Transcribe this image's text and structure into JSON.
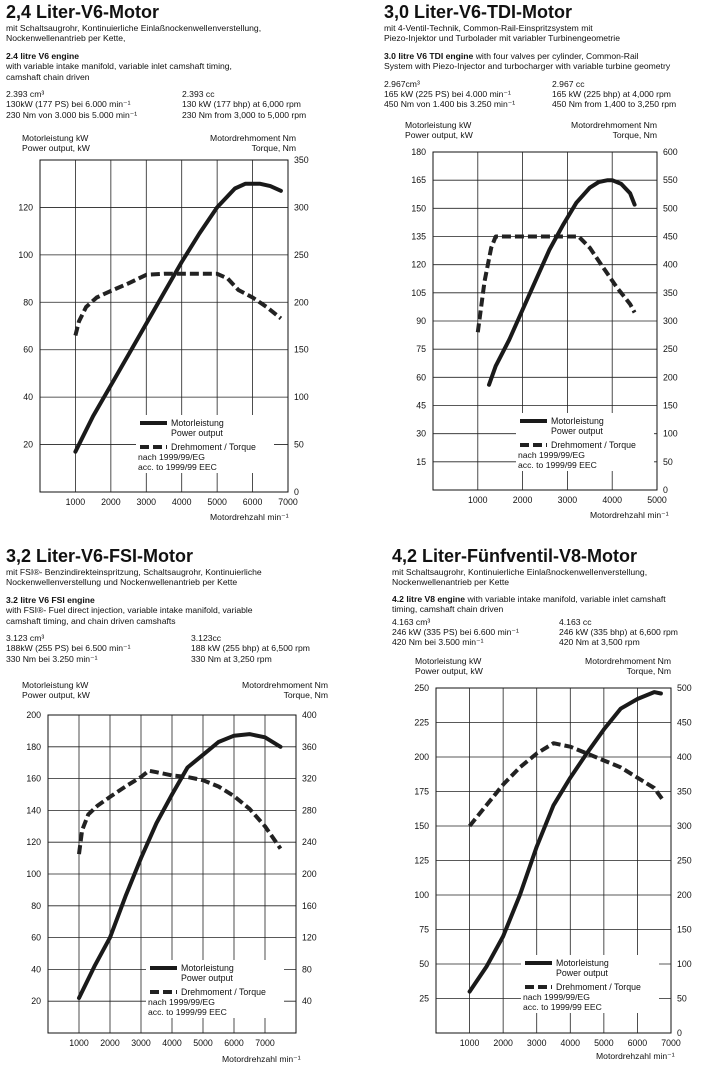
{
  "panels": [
    {
      "title": "2,4 Liter-V6-Motor",
      "subtitle": "mit Schaltsaugrohr, Kontinuierliche Einlaßnockenwellenverstellung,\nNockenwellenantrieb per Kette,",
      "engine_heading": "2.4 litre V6  engine",
      "engine_text": "with variable intake manifold, variable inlet camshaft timing,\ncamshaft chain driven",
      "specs_de": "2.393 cm³\n130kW (177 PS) bei 6.000 min⁻¹\n230 Nm von 3.000 bis 5.000  min⁻¹",
      "specs_en": "2.393 cc\n130 kW (177 bhp) at 6,000 rpm\n230 Nm from 3,000 to 5,000 rpm",
      "left_axis_label": "Motorleistung kW\nPower output, kW",
      "right_axis_label": "Motordrehmoment Nm\nTorque, Nm",
      "x_axis_label": "Motordrehzahl min⁻¹"
    },
    {
      "title": "3,0 Liter-V6-TDI-Motor",
      "subtitle": "mit 4-Ventil-Technik, Common-Rail-Einspritzsystem mit\nPiezo-Injektor und Turbolader mit variabler Turbinengeometrie",
      "engine_heading": "3.0 litre V6 TDI engine",
      "engine_text": " with four valves per cylinder, Common-Rail\nSystem with Piezo-Injector and turbocharger with variable turbine geometry",
      "specs_de": "2.967cm³\n165 kW (225 PS) bei 4.000 min⁻¹\n450 Nm von 1.400 bis 3.250 min⁻¹",
      "specs_en": "2.967 cc\n165 kW (225 bhp) at 4,000 rpm\n450 Nm from 1,400 to 3,250 rpm",
      "left_axis_label": "Motorleistung kW\nPower output, kW",
      "right_axis_label": "Motordrehmoment Nm\nTorque, Nm",
      "x_axis_label": "Motordrehzahl min⁻¹"
    },
    {
      "title": "3,2 Liter-V6-FSI-Motor",
      "subtitle": "mit FSI®- Benzindirekteinspritzung, Schaltsaugrohr, Kontinuierliche\nNockenwellenverstellung und Nockenwellenantrieb per Kette",
      "engine_heading": "3.2 litre V6 FSI engine",
      "engine_text": "\nwith FSI®- Fuel direct injection, variable intake manifold, variable\ncamshaft timing, and chain driven camshafts",
      "specs_de": "3.123 cm³\n188kW (255 PS) bei 6.500 min⁻¹\n330 Nm bei 3.250  min⁻¹",
      "specs_en": "3.123cc\n188 kW (255 bhp) at 6,500 rpm\n330 Nm at 3,250 rpm",
      "left_axis_label": "Motorleistung kW\nPower output, kW",
      "right_axis_label": "Motordrehmoment Nm\nTorque, Nm",
      "x_axis_label": "Motordrehzahl min⁻¹"
    },
    {
      "title": "4,2 Liter-Fünfventil-V8-Motor",
      "subtitle": "mit Schaltsaugrohr, Kontinuierliche Einlaßnockenwellenverstellung,\nNockenwellenantrieb per Kette",
      "engine_heading": "4.2 litre V8 engine",
      "engine_text": " with variable intake manifold, variable inlet camshaft\n    timing,  camshaft chain driven",
      "specs_de": "4.163 cm³\n246 kW (335 PS) bei 6.600 min⁻¹\n420 Nm bei 3.500 min⁻¹",
      "specs_en": "4.163 cc\n246 kW (335 bhp) at 6,600 rpm\n420 Nm at 3,500 rpm",
      "left_axis_label": "Motorleistung kW\nPower output, kW",
      "right_axis_label": "Motordrehmoment Nm\nTorque, Nm",
      "x_axis_label": "Motordrehzahl min⁻¹"
    }
  ],
  "chart_data": [
    {
      "type": "line",
      "title": "2,4 Liter-V6-Motor",
      "xlabel": "Motordrehzahl min⁻¹",
      "ylabel": "Motorleistung kW / Power output, kW",
      "y2label": "Motordrehmoment Nm / Torque, Nm",
      "xlim": [
        0,
        7000
      ],
      "ylim": [
        0,
        140
      ],
      "y2lim": [
        0,
        350
      ],
      "x_ticks": [
        1000,
        2000,
        3000,
        4000,
        5000,
        6000,
        7000
      ],
      "y_ticks": [
        20,
        40,
        60,
        80,
        100,
        120
      ],
      "y2_ticks": [
        0,
        50,
        100,
        150,
        200,
        250,
        300,
        350
      ],
      "grid": true,
      "legend": {
        "power": "Motorleistung\nPower output",
        "torque": "Drehmoment / Torque",
        "note": "nach 1999/99/EG\nacc. to 1999/99 EEC"
      },
      "power": {
        "x": [
          1000,
          1500,
          2000,
          2500,
          3000,
          3500,
          4000,
          4500,
          5000,
          5500,
          5800,
          6000,
          6200,
          6500,
          6800
        ],
        "y": [
          17,
          32,
          45,
          58,
          71,
          84,
          97,
          109,
          120,
          128,
          130,
          130,
          130,
          129,
          127
        ]
      },
      "torque": {
        "x": [
          1000,
          1100,
          1300,
          1600,
          2000,
          2500,
          3000,
          3500,
          4000,
          4500,
          5000,
          5300,
          5600,
          6000,
          6400,
          6800
        ],
        "y": [
          165,
          180,
          195,
          205,
          212,
          220,
          229,
          230,
          230,
          230,
          230,
          225,
          213,
          205,
          195,
          183
        ]
      }
    },
    {
      "type": "line",
      "title": "3,0 Liter-V6-TDI-Motor",
      "xlabel": "Motordrehzahl min⁻¹",
      "ylabel": "Motorleistung kW / Power output, kW",
      "y2label": "Motordrehmoment Nm / Torque, Nm",
      "xlim": [
        0,
        5000
      ],
      "ylim": [
        0,
        180
      ],
      "y2lim": [
        0,
        600
      ],
      "x_ticks": [
        1000,
        2000,
        3000,
        4000,
        5000
      ],
      "y_ticks": [
        15,
        30,
        45,
        60,
        75,
        90,
        105,
        120,
        135,
        150,
        165,
        180
      ],
      "y2_ticks": [
        0,
        50,
        100,
        150,
        200,
        250,
        300,
        350,
        400,
        450,
        500,
        550,
        600
      ],
      "grid": true,
      "legend": {
        "power": "Motorleistung\nPower output",
        "torque": "Drehmoment / Torque",
        "note": "nach 1999/99/EG\nacc. to 1999/99 EEC"
      },
      "power": {
        "x": [
          1250,
          1400,
          1700,
          2000,
          2300,
          2600,
          2900,
          3200,
          3500,
          3700,
          3900,
          4000,
          4200,
          4400,
          4500
        ],
        "y": [
          56,
          66,
          80,
          96,
          112,
          128,
          141,
          153,
          161,
          164,
          165,
          165,
          163,
          158,
          152
        ]
      },
      "torque": {
        "x": [
          1000,
          1150,
          1300,
          1400,
          1700,
          2000,
          2500,
          3000,
          3250,
          3500,
          3800,
          4100,
          4400,
          4500
        ],
        "y": [
          280,
          370,
          430,
          450,
          450,
          450,
          450,
          450,
          450,
          430,
          395,
          360,
          330,
          315
        ]
      }
    },
    {
      "type": "line",
      "title": "3,2 Liter-V6-FSI-Motor",
      "xlabel": "Motordrehzahl min⁻¹",
      "ylabel": "Motorleistung kW / Power output, kW",
      "y2label": "Motordrehmoment Nm / Torque, Nm",
      "xlim": [
        0,
        8000
      ],
      "ylim": [
        0,
        200
      ],
      "y2lim": [
        0,
        400
      ],
      "x_ticks": [
        1000,
        2000,
        3000,
        4000,
        5000,
        6000,
        7000
      ],
      "y_ticks": [
        20,
        40,
        60,
        80,
        100,
        120,
        140,
        160,
        180,
        200
      ],
      "y2_ticks": [
        40,
        80,
        120,
        160,
        200,
        240,
        280,
        320,
        360,
        400
      ],
      "grid": true,
      "legend": {
        "power": "Motorleistung\nPower output",
        "torque": "Drehmoment / Torque",
        "note": "nach 1999/99/EG\nacc. to 1999/99 EEC"
      },
      "power": {
        "x": [
          1000,
          1500,
          2000,
          2500,
          3000,
          3500,
          4000,
          4500,
          5000,
          5500,
          6000,
          6500,
          7000,
          7500
        ],
        "y": [
          22,
          42,
          60,
          86,
          110,
          132,
          150,
          167,
          175,
          183,
          187,
          188,
          186,
          180
        ]
      },
      "torque": {
        "x": [
          1000,
          1100,
          1300,
          1600,
          2000,
          2500,
          3000,
          3250,
          3500,
          4000,
          4500,
          5000,
          5500,
          6000,
          6500,
          7000,
          7500
        ],
        "y": [
          225,
          255,
          275,
          286,
          297,
          310,
          322,
          330,
          328,
          324,
          322,
          318,
          310,
          298,
          282,
          260,
          232
        ]
      }
    },
    {
      "type": "line",
      "title": "4,2 Liter-Fünfventil-V8-Motor",
      "xlabel": "Motordrehzahl min⁻¹",
      "ylabel": "Motorleistung kW / Power output, kW",
      "y2label": "Motordrehmoment Nm / Torque, Nm",
      "xlim": [
        0,
        7000
      ],
      "ylim": [
        0,
        250
      ],
      "y2lim": [
        0,
        500
      ],
      "x_ticks": [
        1000,
        2000,
        3000,
        4000,
        5000,
        6000,
        7000
      ],
      "y_ticks": [
        25,
        50,
        75,
        100,
        125,
        150,
        175,
        200,
        225,
        250
      ],
      "y2_ticks": [
        0,
        50,
        100,
        150,
        200,
        250,
        300,
        350,
        400,
        450,
        500
      ],
      "grid": true,
      "legend": {
        "power": "Motorleistung\nPower output",
        "torque": "Drehmoment / Torque",
        "note": "nach 1999/99/EG\nacc. to 1999/99 EEC"
      },
      "power": {
        "x": [
          1000,
          1500,
          2000,
          2500,
          3000,
          3500,
          4000,
          4500,
          5000,
          5500,
          6000,
          6500,
          6700
        ],
        "y": [
          30,
          48,
          70,
          100,
          135,
          165,
          185,
          203,
          220,
          235,
          242,
          247,
          246
        ]
      },
      "torque": {
        "x": [
          1000,
          1500,
          2000,
          2500,
          3000,
          3500,
          4000,
          4500,
          5000,
          5500,
          6000,
          6500,
          6800
        ],
        "y": [
          300,
          330,
          360,
          385,
          405,
          420,
          415,
          405,
          395,
          385,
          370,
          355,
          335
        ]
      }
    }
  ]
}
